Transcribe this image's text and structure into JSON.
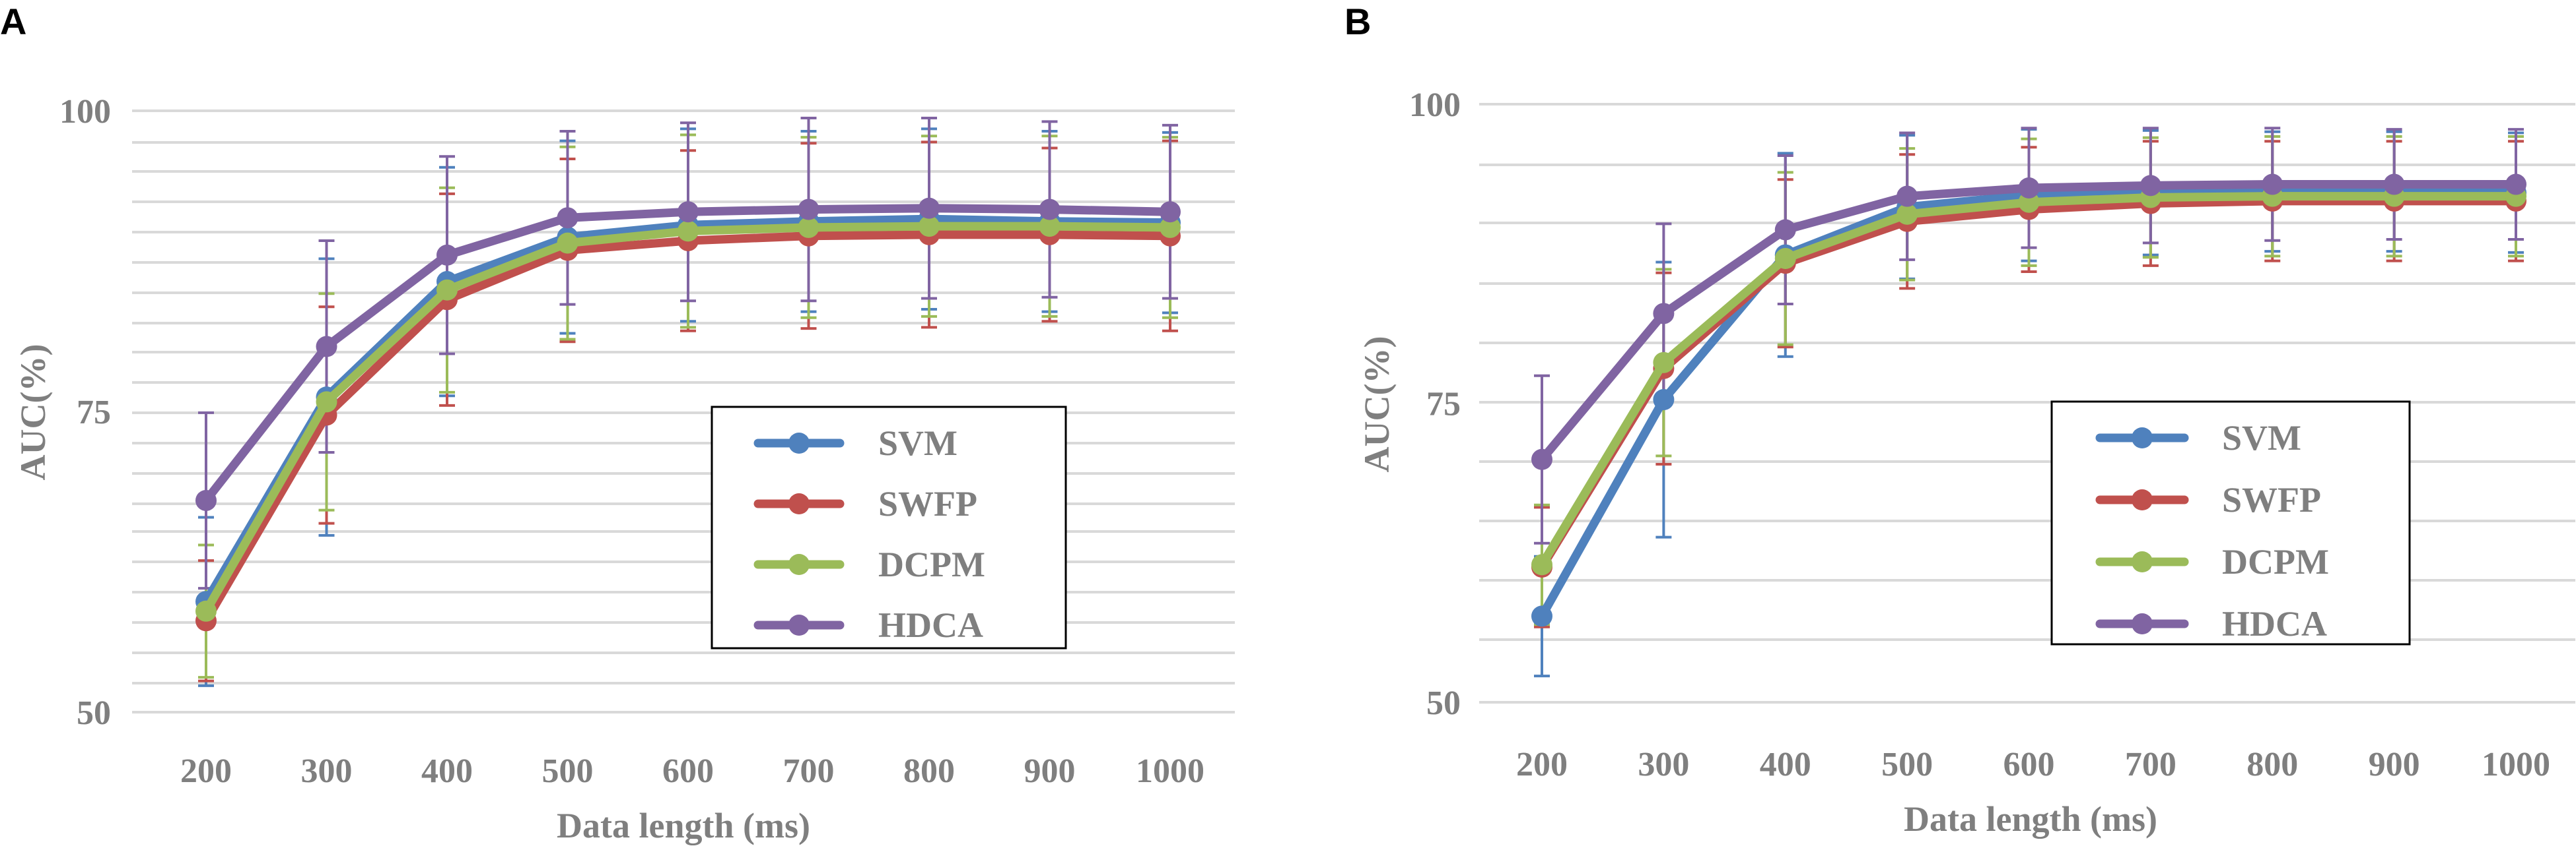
{
  "chart_data": [
    {
      "type": "line",
      "panel_label": "A",
      "xlabel": "Data length (ms)",
      "ylabel": "AUC(%)",
      "categories": [
        "200",
        "300",
        "400",
        "500",
        "600",
        "700",
        "800",
        "900",
        "1000"
      ],
      "ylim": [
        50,
        100
      ],
      "yticks": [
        "50",
        "75",
        "100"
      ],
      "grid": true,
      "legend_position": "bottom-right",
      "series": [
        {
          "name": "SVM",
          "color": "#4f81bd",
          "values": [
            59.2,
            76.2,
            85.8,
            89.5,
            90.5,
            90.8,
            91.0,
            90.8,
            90.7
          ],
          "errors": [
            7.0,
            11.5,
            9.5,
            8.0,
            8.0,
            7.5,
            7.5,
            7.5,
            7.5
          ]
        },
        {
          "name": "SWFP",
          "color": "#c0504d",
          "values": [
            57.6,
            74.7,
            84.3,
            88.4,
            89.2,
            89.6,
            89.7,
            89.7,
            89.6
          ],
          "errors": [
            5.0,
            9.0,
            8.8,
            7.6,
            7.5,
            7.7,
            7.7,
            7.2,
            7.9
          ]
        },
        {
          "name": "DCPM",
          "color": "#9bbb59",
          "values": [
            58.4,
            75.8,
            85.1,
            89.0,
            90.0,
            90.3,
            90.4,
            90.4,
            90.3
          ],
          "errors": [
            5.5,
            9.0,
            8.5,
            8.0,
            8.0,
            7.5,
            7.5,
            7.5,
            7.5
          ]
        },
        {
          "name": "HDCA",
          "color": "#8064a2",
          "values": [
            67.6,
            80.4,
            88.0,
            91.1,
            91.6,
            91.8,
            91.9,
            91.8,
            91.6
          ],
          "errors": [
            7.3,
            8.8,
            8.2,
            7.2,
            7.4,
            7.6,
            7.5,
            7.3,
            7.2
          ]
        }
      ]
    },
    {
      "type": "line",
      "panel_label": "B",
      "xlabel": "Data length (ms)",
      "ylabel": "AUC(%)",
      "categories": [
        "200",
        "300",
        "400",
        "500",
        "600",
        "700",
        "800",
        "900",
        "1000"
      ],
      "ylim": [
        50,
        100
      ],
      "yticks": [
        "50",
        "75",
        "100"
      ],
      "grid": true,
      "legend_position": "bottom-right",
      "series": [
        {
          "name": "SVM",
          "color": "#4f81bd",
          "values": [
            57.2,
            75.3,
            87.4,
            91.4,
            92.4,
            92.6,
            92.7,
            92.7,
            92.6
          ],
          "errors": [
            5.0,
            11.5,
            8.5,
            6.0,
            5.5,
            5.2,
            5.0,
            5.0,
            5.0
          ]
        },
        {
          "name": "SWFP",
          "color": "#c0504d",
          "values": [
            61.3,
            77.9,
            86.7,
            90.2,
            91.2,
            91.7,
            91.9,
            91.9,
            91.9
          ],
          "errors": [
            5.0,
            8.0,
            7.0,
            5.6,
            5.2,
            5.2,
            5.0,
            5.0,
            5.0
          ]
        },
        {
          "name": "DCPM",
          "color": "#9bbb59",
          "values": [
            61.5,
            78.4,
            87.1,
            90.8,
            91.8,
            92.2,
            92.3,
            92.3,
            92.3
          ],
          "errors": [
            5.0,
            7.8,
            7.2,
            5.5,
            5.3,
            5.0,
            5.0,
            5.0,
            5.0
          ]
        },
        {
          "name": "HDCA",
          "color": "#8064a2",
          "values": [
            70.3,
            82.5,
            89.5,
            92.3,
            93.0,
            93.2,
            93.3,
            93.3,
            93.3
          ],
          "errors": [
            7.0,
            7.5,
            6.2,
            5.3,
            5.0,
            4.8,
            4.7,
            4.6,
            4.6
          ]
        }
      ]
    }
  ]
}
